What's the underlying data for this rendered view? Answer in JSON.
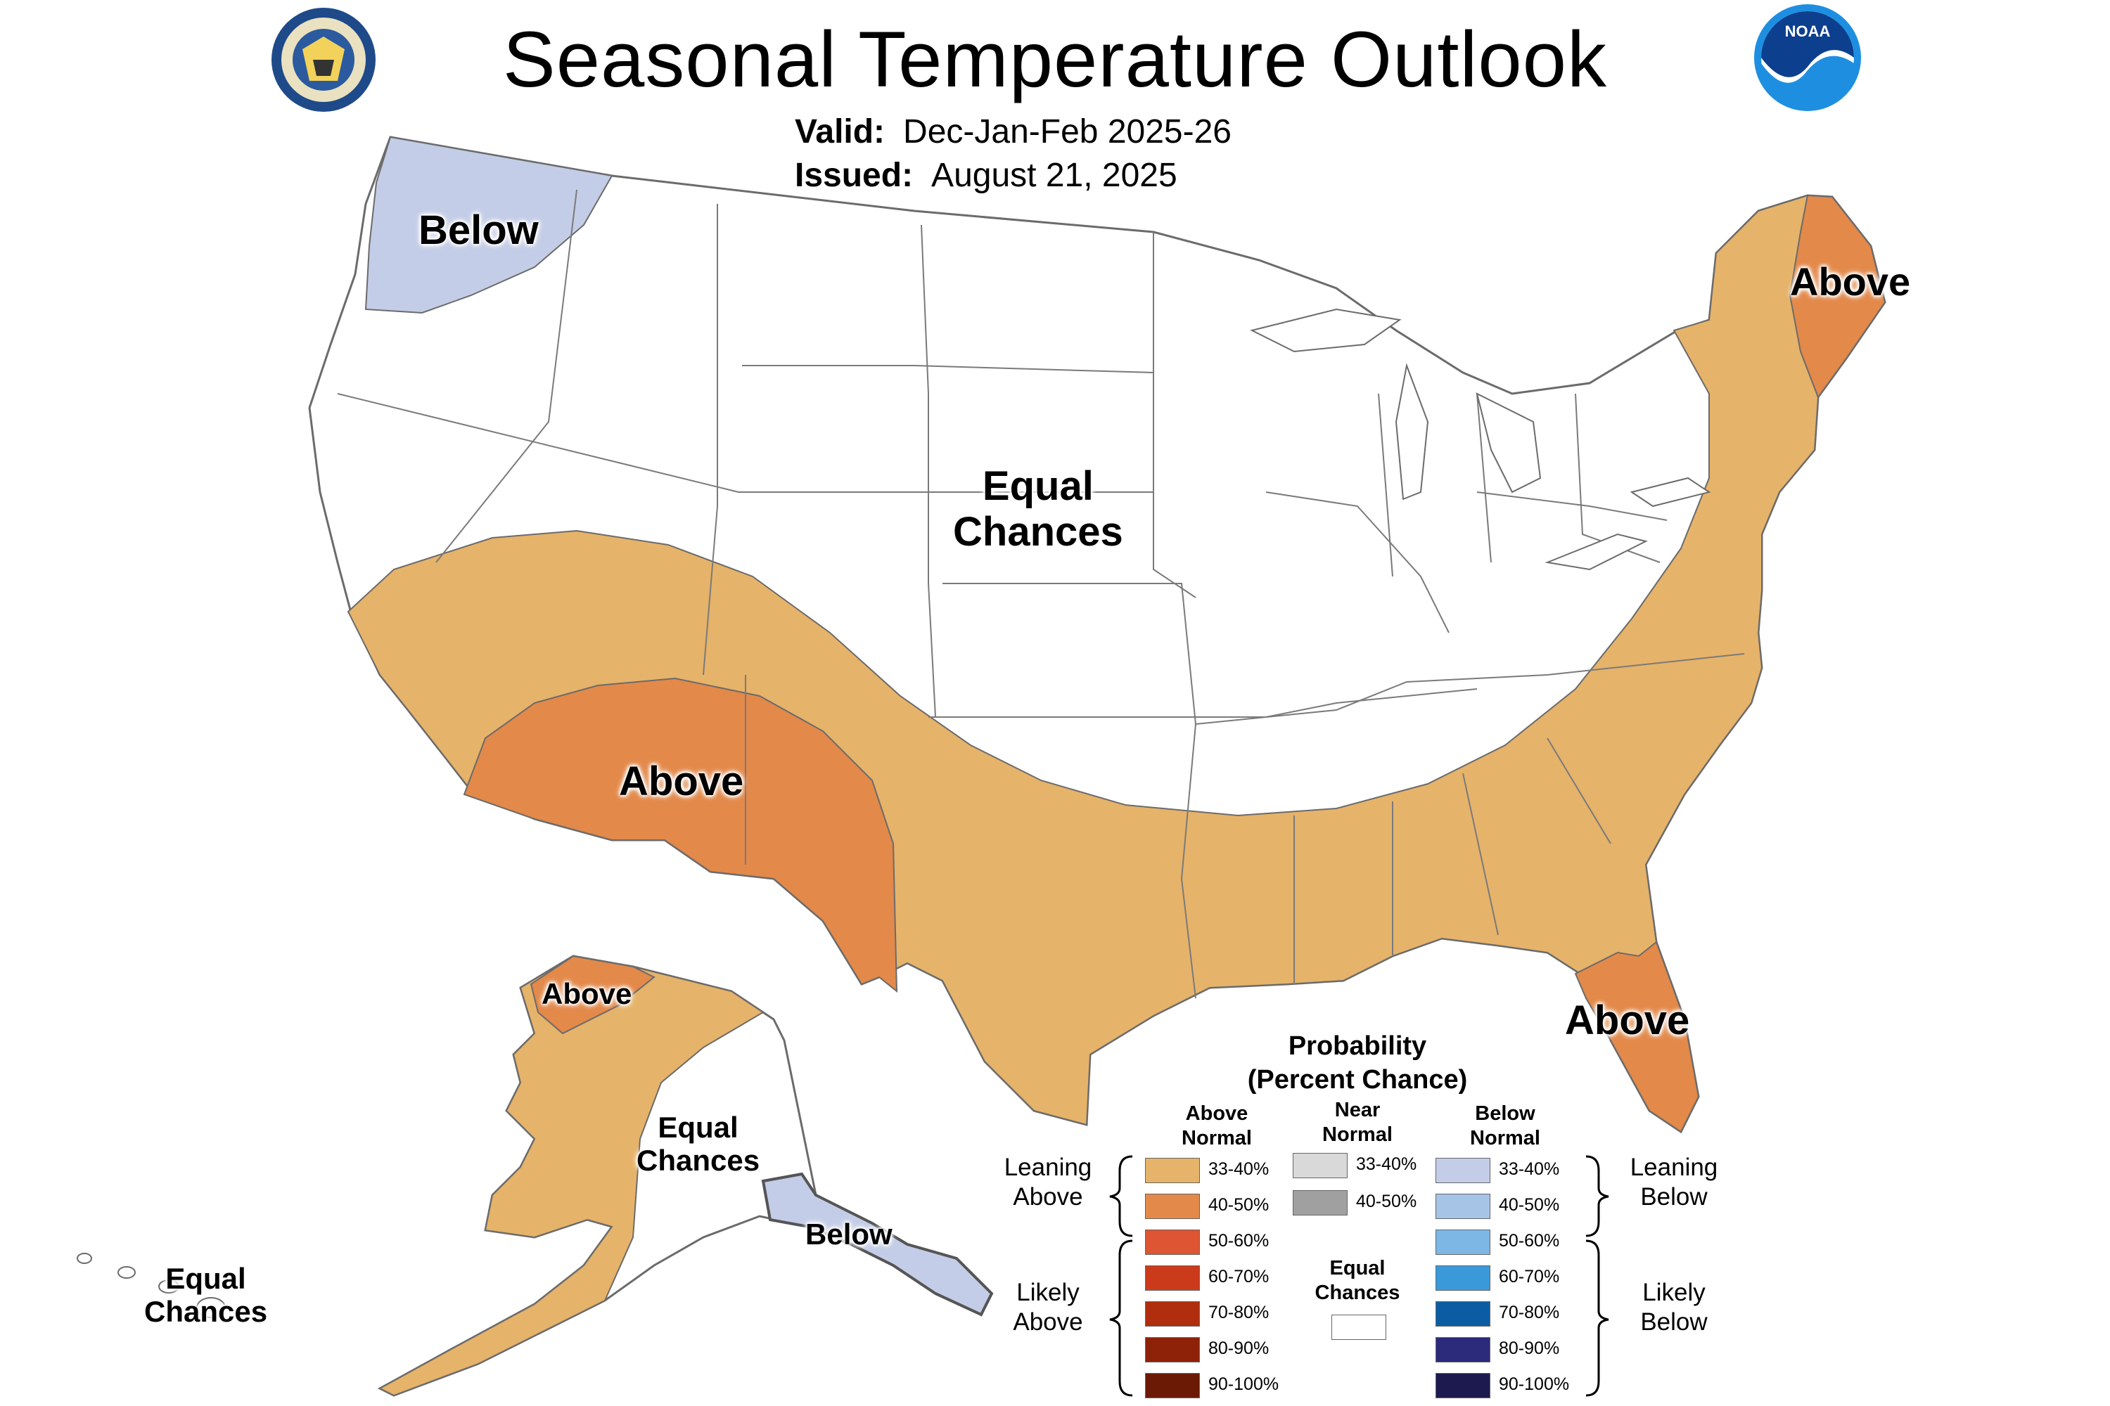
{
  "header": {
    "title": "Seasonal Temperature Outlook",
    "valid_label": "Valid:",
    "valid_value": "Dec-Jan-Feb 2025-26",
    "issued_label": "Issued:",
    "issued_value": "August 21, 2025",
    "left_logo": "department-of-commerce-seal",
    "right_logo": "noaa-logo"
  },
  "map_labels": {
    "pacific_nw": "Below",
    "central": [
      "Equal",
      "Chances"
    ],
    "southwest": "Above",
    "maine": "Above",
    "florida": "Above",
    "alaska_north": "Above",
    "alaska_central": [
      "Equal",
      "Chances"
    ],
    "alaska_panhandle": "Below",
    "hawaii": [
      "Equal",
      "Chances"
    ]
  },
  "legend": {
    "title_line1": "Probability",
    "title_line2": "(Percent Chance)",
    "col_above": [
      "Above",
      "Normal"
    ],
    "col_near": [
      "Near",
      "Normal"
    ],
    "col_below": [
      "Below",
      "Normal"
    ],
    "leaning_above": [
      "Leaning",
      "Above"
    ],
    "likely_above": [
      "Likely",
      "Above"
    ],
    "leaning_below": [
      "Leaning",
      "Below"
    ],
    "likely_below": [
      "Likely",
      "Below"
    ],
    "equal_chances": [
      "Equal",
      "Chances"
    ],
    "above_swatches": [
      {
        "label": "33-40%",
        "color": "#E6B36A"
      },
      {
        "label": "40-50%",
        "color": "#E3894A"
      },
      {
        "label": "50-60%",
        "color": "#DD5532"
      },
      {
        "label": "60-70%",
        "color": "#CC3A1C"
      },
      {
        "label": "70-80%",
        "color": "#B02E0E"
      },
      {
        "label": "80-90%",
        "color": "#8E2208"
      },
      {
        "label": "90-100%",
        "color": "#6B1A06"
      }
    ],
    "near_swatches": [
      {
        "label": "33-40%",
        "color": "#D9D9D9"
      },
      {
        "label": "40-50%",
        "color": "#A0A0A0"
      }
    ],
    "below_swatches": [
      {
        "label": "33-40%",
        "color": "#C4CDE7"
      },
      {
        "label": "40-50%",
        "color": "#A6C4E6"
      },
      {
        "label": "50-60%",
        "color": "#7DB7E6"
      },
      {
        "label": "60-70%",
        "color": "#3A9AD9"
      },
      {
        "label": "70-80%",
        "color": "#0B5DA3"
      },
      {
        "label": "80-90%",
        "color": "#2C2A7A"
      },
      {
        "label": "90-100%",
        "color": "#1C1A4E"
      }
    ],
    "equal_color": "#FFFFFF"
  }
}
